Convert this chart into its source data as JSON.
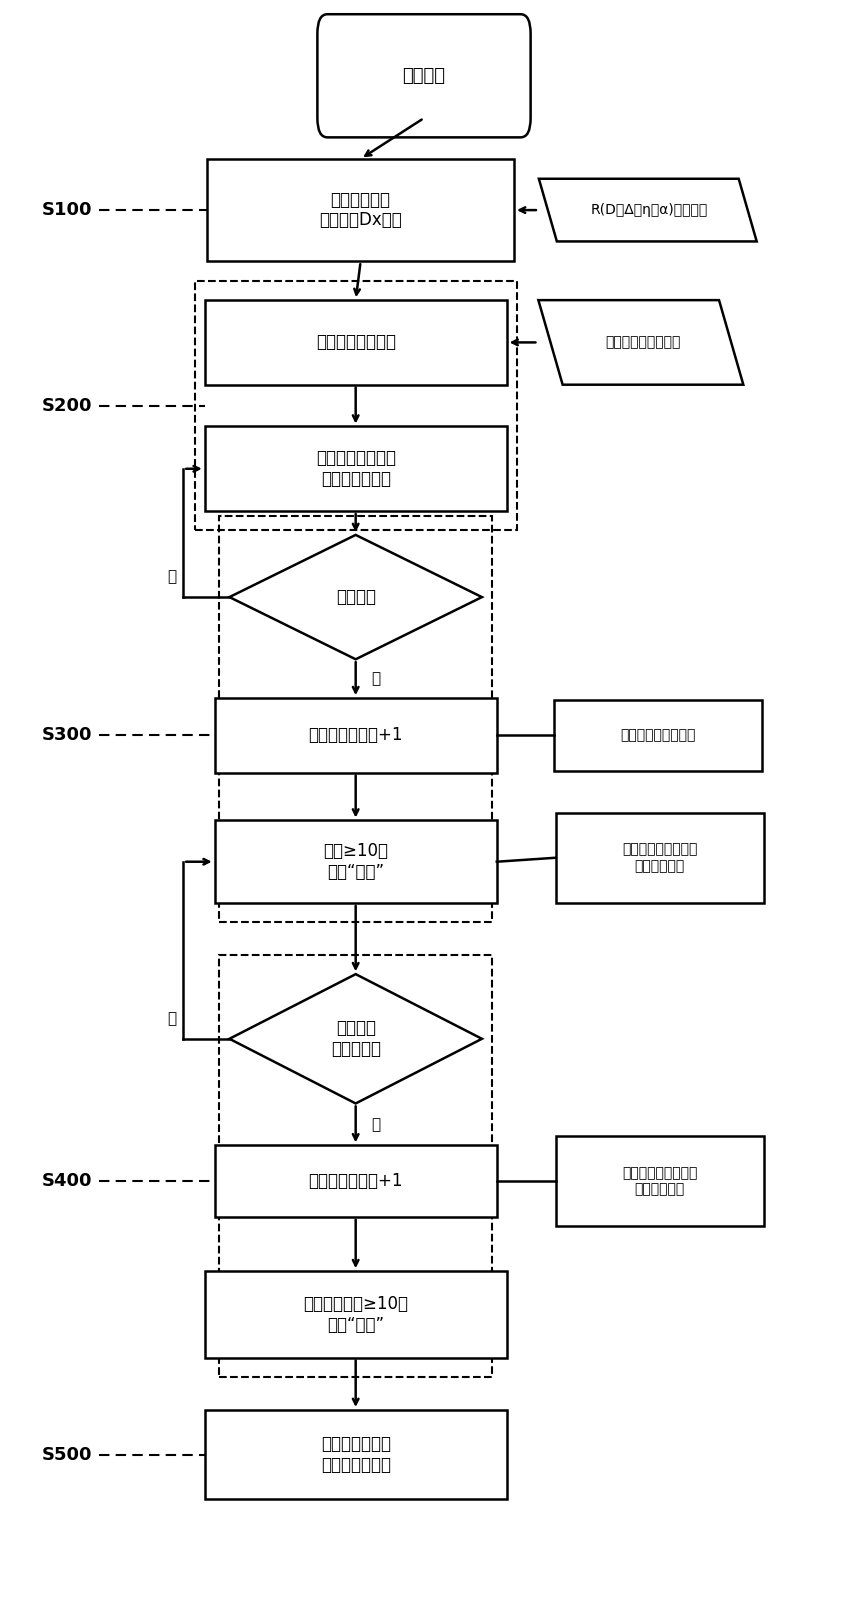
{
  "bg_color": "#ffffff",
  "box_s100_text": "建立札机孔型\n基圆直径Dx模型",
  "box_r_inp_text": "R(D、Δ、η、α)函数数据",
  "box_start_text": "札机运行",
  "box_s200a_text": "钓筋成品札制参数",
  "box_spec_text": "规格、钓号、重量等",
  "box_s200b_text": "建立产品工艺参数\n与特性数据函数",
  "box_d1_text": "参数接近",
  "box_s300a_text": "对应命中，计数+1",
  "box_final_note_text": "最终数据可手动修正",
  "box_s300b_text": "计数≥10，\n产生“规则”",
  "box_fuzzy1_text": "模糊推导，计数次数\n据可手动设置",
  "box_d2_text": "规则推导\n与实际符合",
  "box_s400a_text": "规则命中，计数+1",
  "box_fuzzy2_text": "模糊推导，计数次数\n据可手动设置",
  "box_s400b_text": "规则命中计数≥10，\n产生“模式”",
  "box_s500_text": "推导参数以指导\n调整或控制札制",
  "label_s100": "S100",
  "label_s200": "S200",
  "label_s300": "S300",
  "label_s400": "S400",
  "label_s500": "S500",
  "yes_text": "是",
  "no_text": "否"
}
